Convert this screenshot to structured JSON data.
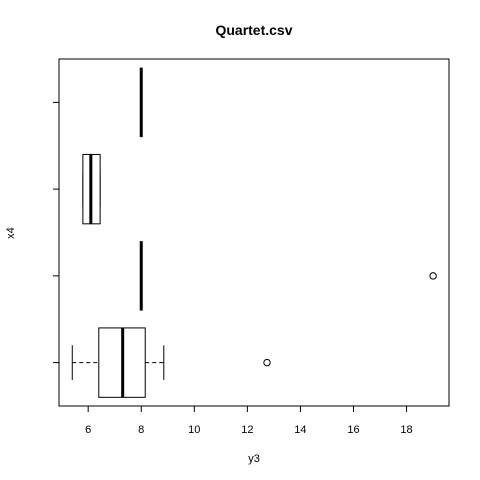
{
  "chart_data": {
    "type": "boxplot",
    "orientation": "horizontal",
    "title": "Quartet.csv",
    "xlabel": "y3",
    "ylabel": "x4",
    "xlim": [
      4.9,
      19.6
    ],
    "xticks": [
      6,
      8,
      10,
      12,
      14,
      16,
      18
    ],
    "ylim": [
      0.5,
      4.5
    ],
    "groups": [
      {
        "position": 1,
        "whisker_low": 5.4,
        "q1": 6.4,
        "median": 7.3,
        "q3": 8.15,
        "whisker_high": 8.85,
        "outliers": [
          12.74
        ]
      },
      {
        "position": 2,
        "whisker_low": 8.0,
        "q1": 8.0,
        "median": 8.0,
        "q3": 8.0,
        "whisker_high": 8.0,
        "outliers": [
          19.0
        ]
      },
      {
        "position": 3,
        "whisker_low": 5.8,
        "q1": 5.8,
        "median": 6.1,
        "q3": 6.45,
        "whisker_high": 6.45,
        "outliers": []
      },
      {
        "position": 4,
        "whisker_low": 8.0,
        "q1": 8.0,
        "median": 8.0,
        "q3": 8.0,
        "whisker_high": 8.0,
        "outliers": []
      }
    ],
    "grid": false,
    "legend": "none"
  }
}
